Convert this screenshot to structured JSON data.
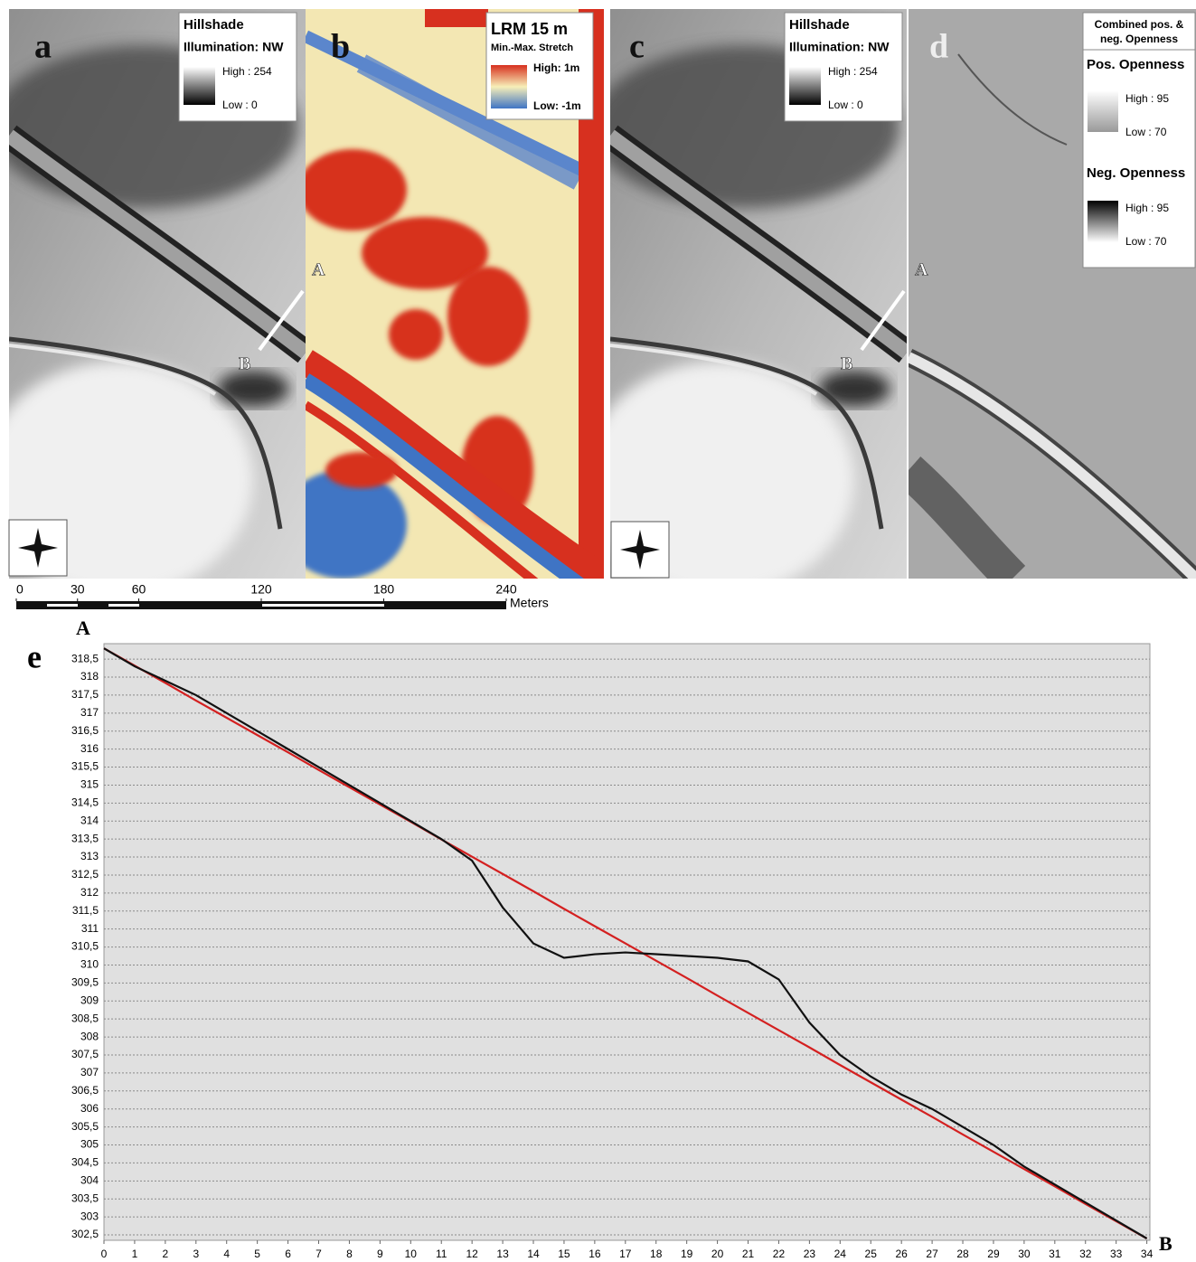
{
  "panels": {
    "a": {
      "letter": "a",
      "legend": {
        "title": "Hillshade",
        "subtitle": "Illumination: NW",
        "high": "High : 254",
        "low": "Low : 0"
      },
      "section_start": "A",
      "section_end": "B"
    },
    "b": {
      "letter": "b",
      "legend": {
        "title": "LRM 15 m",
        "subtitle": "Min.-Max. Stretch",
        "high": "High: 1m",
        "low": "Low: -1m"
      }
    },
    "c": {
      "letter": "c",
      "legend": {
        "title": "Hillshade",
        "subtitle": "Illumination: NW",
        "high": "High : 254",
        "low": "Low : 0"
      },
      "section_start": "A",
      "section_end": "B"
    },
    "d": {
      "letter": "d",
      "legend": {
        "title_lines": [
          "Combined pos. &",
          "neg. Openness"
        ],
        "pos_title": "Pos. Openness",
        "pos_high": "High : 95",
        "pos_low": "Low : 70",
        "neg_title": "Neg. Openness",
        "neg_high": "High : 95",
        "neg_low": "Low : 70"
      }
    }
  },
  "scale_bar": {
    "ticks": [
      0,
      30,
      60,
      120,
      180,
      240
    ],
    "unit": "Meters"
  },
  "chart_data": {
    "type": "line",
    "panel_letter": "e",
    "start_label": "A",
    "end_label": "B",
    "x": [
      0,
      1,
      2,
      3,
      4,
      5,
      6,
      7,
      8,
      9,
      10,
      11,
      12,
      13,
      14,
      15,
      16,
      17,
      18,
      19,
      20,
      21,
      22,
      23,
      24,
      25,
      26,
      27,
      28,
      29,
      30,
      31,
      32,
      33,
      34
    ],
    "series": [
      {
        "color": "#d42020",
        "values": [
          318.8,
          318.32,
          317.84,
          317.35,
          316.87,
          316.39,
          315.91,
          315.42,
          314.94,
          314.46,
          313.98,
          313.49,
          313.01,
          312.53,
          312.05,
          311.56,
          311.08,
          310.6,
          310.12,
          309.64,
          309.15,
          308.67,
          308.19,
          307.71,
          307.22,
          306.74,
          306.26,
          305.78,
          305.29,
          304.81,
          304.33,
          303.85,
          303.36,
          302.88,
          302.4
        ]
      },
      {
        "color": "#111111",
        "values": [
          318.8,
          318.3,
          317.9,
          317.5,
          317.0,
          316.5,
          316.0,
          315.5,
          315.0,
          314.5,
          314.0,
          313.5,
          312.9,
          311.6,
          310.6,
          310.2,
          310.3,
          310.35,
          310.3,
          310.25,
          310.2,
          310.1,
          309.6,
          308.4,
          307.5,
          306.9,
          306.4,
          306.0,
          305.5,
          305.0,
          304.4,
          303.9,
          303.4,
          302.9,
          302.4
        ]
      }
    ],
    "xlim": [
      0,
      34.1
    ],
    "ylim": [
      302.35,
      318.93
    ],
    "xticks": [
      0,
      1,
      2,
      3,
      4,
      5,
      6,
      7,
      8,
      9,
      10,
      11,
      12,
      13,
      14,
      15,
      16,
      17,
      18,
      19,
      20,
      21,
      22,
      23,
      24,
      25,
      26,
      27,
      28,
      29,
      30,
      31,
      32,
      33,
      34
    ],
    "yticks": [
      {
        "value": 302.5,
        "label": "302,5"
      },
      303,
      {
        "value": 303.5,
        "label": "303,5"
      },
      304,
      {
        "value": 304.5,
        "label": "304,5"
      },
      305,
      {
        "value": 305.5,
        "label": "305,5"
      },
      306,
      {
        "value": 306.5,
        "label": "306,5"
      },
      307,
      {
        "value": 307.5,
        "label": "307,5"
      },
      308,
      {
        "value": 308.5,
        "label": "308,5"
      },
      309,
      {
        "value": 309.5,
        "label": "309,5"
      },
      310,
      {
        "value": 310.5,
        "label": "310,5"
      },
      311,
      {
        "value": 311.5,
        "label": "311,5"
      },
      312,
      {
        "value": 312.5,
        "label": "312,5"
      },
      313,
      {
        "value": 313.5,
        "label": "313,5"
      },
      314,
      {
        "value": 314.5,
        "label": "314,5"
      },
      315,
      {
        "value": 315.5,
        "label": "315,5"
      },
      316,
      {
        "value": 316.5,
        "label": "316,5"
      },
      317,
      {
        "value": 317.5,
        "label": "317,5"
      },
      318,
      {
        "value": 318.5,
        "label": "318,5"
      }
    ],
    "grid": true
  }
}
